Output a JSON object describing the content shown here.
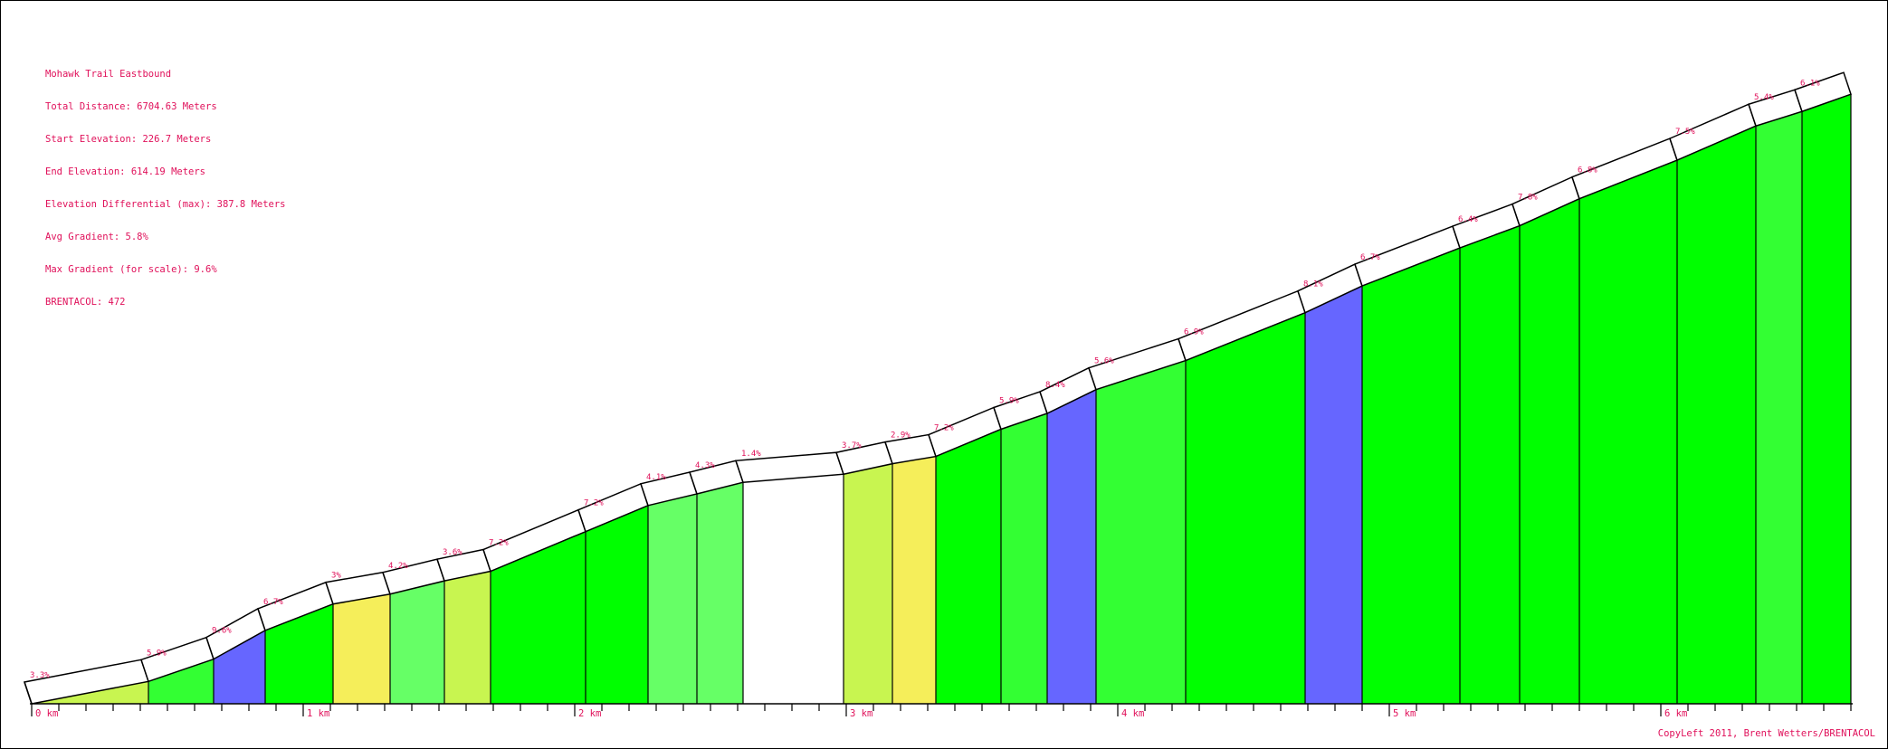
{
  "info": {
    "title": "Mohawk Trail Eastbound",
    "total_distance": "Total Distance: 6704.63 Meters",
    "start_elevation": "Start Elevation: 226.7 Meters",
    "end_elevation": "End Elevation: 614.19 Meters",
    "elevation_differential": "Elevation Differential (max): 387.8 Meters",
    "avg_gradient": "Avg Gradient: 5.8%",
    "max_gradient": "Max Gradient (for scale): 9.6%",
    "brentacol": "BRENTACOL: 472"
  },
  "footer": {
    "copyleft": "CopyLeft 2011, Brent Wetters/BRENTACOL"
  },
  "colors": {
    "flat": "#ffffff",
    "yellow": "#f5ee5a",
    "yellow_green": "#c8f550",
    "light_green": "#66ff66",
    "mid_green": "#33ff33",
    "green": "#00ff00",
    "blue": "#6666ff",
    "label": "#e0105a",
    "line": "#000000"
  },
  "chart_data": {
    "type": "area",
    "title": "Mohawk Trail Eastbound",
    "x_unit": "km",
    "x_ticks": [
      "0 km",
      "1 km",
      "2 km",
      "3 km",
      "4 km",
      "5 km",
      "6 km"
    ],
    "x_range": [
      0,
      6.7
    ],
    "y_range": [
      226.7,
      614.19
    ],
    "segments": [
      {
        "start_km": 0.0,
        "end_km": 0.43,
        "gradient_label": "3.3%",
        "color": "yellow_green"
      },
      {
        "start_km": 0.43,
        "end_km": 0.67,
        "gradient_label": "5.9%",
        "color": "mid_green"
      },
      {
        "start_km": 0.67,
        "end_km": 0.86,
        "gradient_label": "9.6%",
        "color": "blue"
      },
      {
        "start_km": 0.86,
        "end_km": 1.11,
        "gradient_label": "6.7%",
        "color": "green"
      },
      {
        "start_km": 1.11,
        "end_km": 1.32,
        "gradient_label": "3%",
        "color": "yellow"
      },
      {
        "start_km": 1.32,
        "end_km": 1.52,
        "gradient_label": "4.2%",
        "color": "light_green"
      },
      {
        "start_km": 1.52,
        "end_km": 1.69,
        "gradient_label": "3.6%",
        "color": "yellow_green"
      },
      {
        "start_km": 1.69,
        "end_km": 2.04,
        "gradient_label": "7.2%",
        "color": "green"
      },
      {
        "start_km": 2.04,
        "end_km": 2.27,
        "gradient_label": "7.2%",
        "color": "green"
      },
      {
        "start_km": 2.27,
        "end_km": 2.45,
        "gradient_label": "4.1%",
        "color": "light_green"
      },
      {
        "start_km": 2.45,
        "end_km": 2.62,
        "gradient_label": "4.3%",
        "color": "light_green"
      },
      {
        "start_km": 2.62,
        "end_km": 2.99,
        "gradient_label": "1.4%",
        "color": "flat"
      },
      {
        "start_km": 2.99,
        "end_km": 3.17,
        "gradient_label": "3.7%",
        "color": "yellow_green"
      },
      {
        "start_km": 3.17,
        "end_km": 3.33,
        "gradient_label": "2.9%",
        "color": "yellow"
      },
      {
        "start_km": 3.33,
        "end_km": 3.57,
        "gradient_label": "7.2%",
        "color": "green"
      },
      {
        "start_km": 3.57,
        "end_km": 3.74,
        "gradient_label": "5.9%",
        "color": "mid_green"
      },
      {
        "start_km": 3.74,
        "end_km": 3.92,
        "gradient_label": "8.4%",
        "color": "blue"
      },
      {
        "start_km": 3.92,
        "end_km": 4.25,
        "gradient_label": "5.6%",
        "color": "mid_green"
      },
      {
        "start_km": 4.25,
        "end_km": 4.69,
        "gradient_label": "6.9%",
        "color": "green"
      },
      {
        "start_km": 4.69,
        "end_km": 4.9,
        "gradient_label": "8.1%",
        "color": "blue"
      },
      {
        "start_km": 4.9,
        "end_km": 5.26,
        "gradient_label": "6.7%",
        "color": "green"
      },
      {
        "start_km": 5.26,
        "end_km": 5.48,
        "gradient_label": "6.4%",
        "color": "green"
      },
      {
        "start_km": 5.48,
        "end_km": 5.7,
        "gradient_label": "7.8%",
        "color": "green"
      },
      {
        "start_km": 5.7,
        "end_km": 6.06,
        "gradient_label": "6.8%",
        "color": "green"
      },
      {
        "start_km": 6.06,
        "end_km": 6.35,
        "gradient_label": "7.5%",
        "color": "green"
      },
      {
        "start_km": 6.35,
        "end_km": 6.52,
        "gradient_label": "5.4%",
        "color": "mid_green"
      },
      {
        "start_km": 6.52,
        "end_km": 6.7,
        "gradient_label": "6.1%",
        "color": "green"
      }
    ]
  }
}
